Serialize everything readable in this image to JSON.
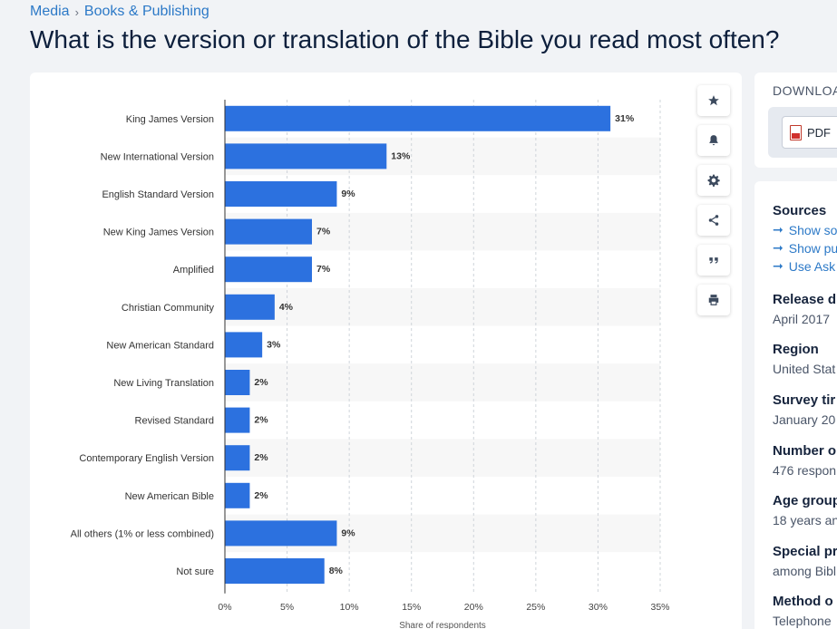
{
  "breadcrumb": {
    "items": [
      "Media",
      "Books & Publishing"
    ],
    "separator": "›"
  },
  "page_title": "What is the version or translation of the Bible you read most often?",
  "actions": [
    "star-icon",
    "bell-icon",
    "gear-icon",
    "share-icon",
    "quote-icon",
    "print-icon"
  ],
  "download": {
    "title": "DOWNLOAD",
    "pdf_label": "PDF"
  },
  "info": {
    "sources": {
      "title": "Sources",
      "links": [
        "Show so",
        "Show pu",
        "Use Ask"
      ]
    },
    "release": {
      "title": "Release d",
      "value": "April 2017"
    },
    "region": {
      "title": "Region",
      "value": "United Stat"
    },
    "survey": {
      "title": "Survey tir",
      "value": "January 20"
    },
    "number": {
      "title": "Number o",
      "value": "476 respon"
    },
    "age": {
      "title": "Age group",
      "value": "18 years an"
    },
    "special": {
      "title": "Special pr",
      "value": "among Bibl"
    },
    "method": {
      "title": "Method o",
      "value": "Telephone"
    }
  },
  "colors": {
    "bar": "#2c71df",
    "band": "#f7f7f7",
    "link": "#2c79c7"
  },
  "chart_data": {
    "type": "bar",
    "orientation": "horizontal",
    "categories": [
      "King James Version",
      "New International Version",
      "English Standard Version",
      "New King James Version",
      "Amplified",
      "Christian Community",
      "New American Standard",
      "New Living Translation",
      "Revised Standard",
      "Contemporary English Version",
      "New American Bible",
      "All others (1% or less combined)",
      "Not sure"
    ],
    "values": [
      31,
      13,
      9,
      7,
      7,
      4,
      3,
      2,
      2,
      2,
      2,
      9,
      8
    ],
    "data_labels": [
      "31%",
      "13%",
      "9%",
      "7%",
      "7%",
      "4%",
      "3%",
      "2%",
      "2%",
      "2%",
      "2%",
      "9%",
      "8%"
    ],
    "xlim": [
      0,
      35
    ],
    "x_ticks": [
      0,
      5,
      10,
      15,
      20,
      25,
      30,
      35
    ],
    "x_tick_labels": [
      "0%",
      "5%",
      "10%",
      "15%",
      "20%",
      "25%",
      "30%",
      "35%"
    ],
    "xlabel": "Share of respondents",
    "ylabel": "",
    "title": "",
    "grid": "vertical dashed",
    "legend": "none"
  }
}
